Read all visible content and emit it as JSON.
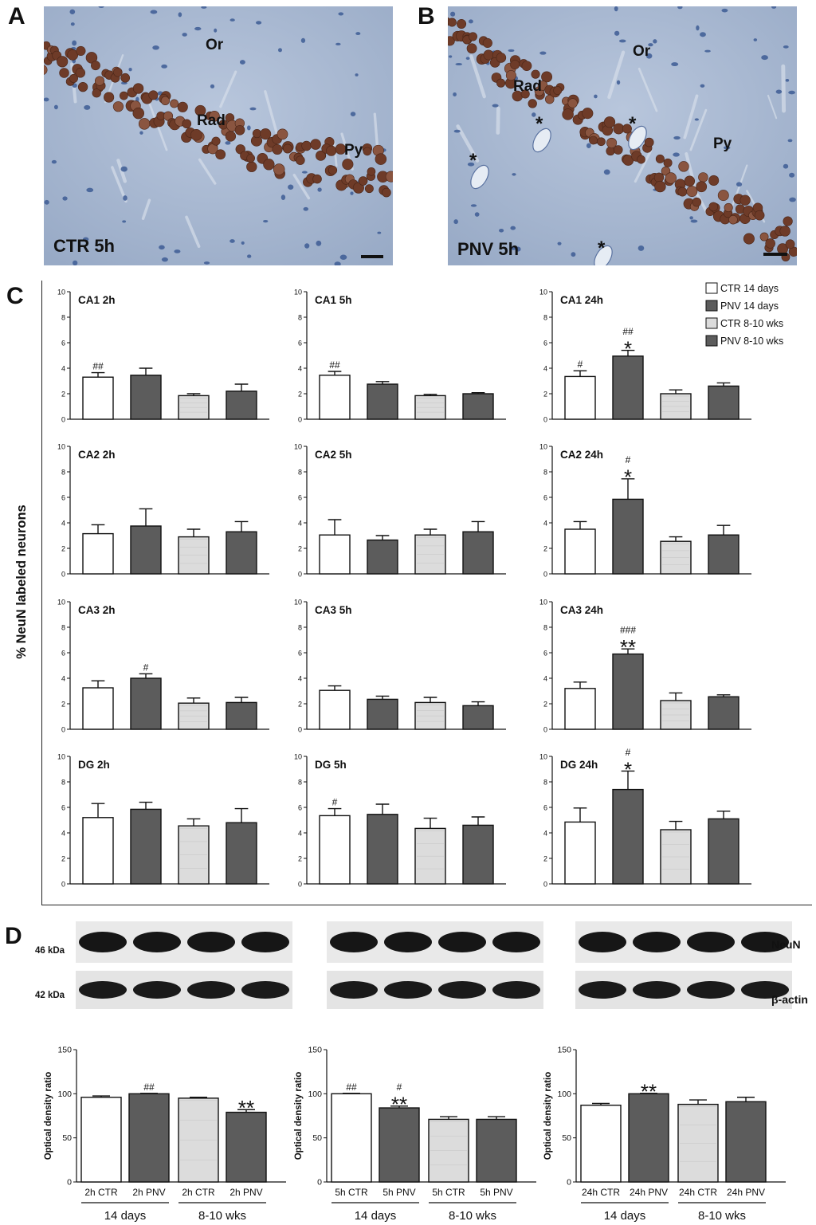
{
  "panels": {
    "A": "A",
    "B": "B",
    "C": "C",
    "D": "D"
  },
  "micrographs": [
    {
      "letter": "A",
      "condition_label": "CTR 5h",
      "regions": {
        "or": "Or",
        "rad": "Rad",
        "py": "Py"
      },
      "asterisks": []
    },
    {
      "letter": "B",
      "condition_label": "PNV 5h",
      "regions": {
        "or": "Or",
        "rad": "Rad",
        "py": "Py"
      },
      "asterisks": [
        "*",
        "*",
        "*",
        "*"
      ]
    }
  ],
  "panel_c": {
    "ylabel": "% NeuN labeled neurons",
    "legend": [
      {
        "label": "CTR 14 days",
        "style": "white"
      },
      {
        "label": "PNV 14 days",
        "style": "dark"
      },
      {
        "label": "CTR 8-10 wks",
        "style": "light"
      },
      {
        "label": "PNV 8-10 wks",
        "style": "dark"
      }
    ]
  },
  "panel_d": {
    "blot_labels": {
      "kda_top": "46 kDa",
      "kda_bottom": "42 kDa",
      "neun": "NeuN",
      "actin": "β-actin"
    },
    "ylabel": "Optical density ratio",
    "group_labels": [
      "14 days",
      "8-10 wks"
    ]
  },
  "colors": {
    "white_bar": "#ffffff",
    "dark_bar": "#5c5c5c",
    "light_bar": "#dcdcdc",
    "axis": "#111111"
  },
  "chart_data": [
    {
      "type": "bar",
      "title": "CA1 2h",
      "ylim": [
        0,
        10
      ],
      "yticks": [
        0,
        2,
        4,
        6,
        8,
        10
      ],
      "values": [
        3.3,
        3.45,
        1.85,
        2.2
      ],
      "errors": [
        0.35,
        0.55,
        0.15,
        0.55
      ],
      "annotations": [
        "##",
        "",
        "",
        ""
      ]
    },
    {
      "type": "bar",
      "title": "CA1 5h",
      "ylim": [
        0,
        10
      ],
      "yticks": [
        0,
        2,
        4,
        6,
        8,
        10
      ],
      "values": [
        3.45,
        2.75,
        1.85,
        2.0
      ],
      "errors": [
        0.3,
        0.2,
        0.1,
        0.08
      ],
      "annotations": [
        "##",
        "",
        "",
        ""
      ]
    },
    {
      "type": "bar",
      "title": "CA1 24h",
      "ylim": [
        0,
        10
      ],
      "yticks": [
        0,
        2,
        4,
        6,
        8,
        10
      ],
      "values": [
        3.35,
        4.95,
        2.0,
        2.6
      ],
      "errors": [
        0.45,
        0.45,
        0.3,
        0.25
      ],
      "annotations": [
        "#",
        "*|##",
        "",
        ""
      ]
    },
    {
      "type": "bar",
      "title": "CA2 2h",
      "ylim": [
        0,
        10
      ],
      "yticks": [
        0,
        2,
        4,
        6,
        8,
        10
      ],
      "values": [
        3.15,
        3.75,
        2.9,
        3.3
      ],
      "errors": [
        0.7,
        1.35,
        0.6,
        0.8
      ],
      "annotations": [
        "",
        "",
        "",
        ""
      ]
    },
    {
      "type": "bar",
      "title": "CA2 5h",
      "ylim": [
        0,
        10
      ],
      "yticks": [
        0,
        2,
        4,
        6,
        8,
        10
      ],
      "values": [
        3.05,
        2.65,
        3.05,
        3.3
      ],
      "errors": [
        1.2,
        0.35,
        0.45,
        0.8
      ],
      "annotations": [
        "",
        "",
        "",
        ""
      ]
    },
    {
      "type": "bar",
      "title": "CA2 24h",
      "ylim": [
        0,
        10
      ],
      "yticks": [
        0,
        2,
        4,
        6,
        8,
        10
      ],
      "values": [
        3.5,
        5.85,
        2.55,
        3.05
      ],
      "errors": [
        0.6,
        1.6,
        0.35,
        0.75
      ],
      "annotations": [
        "",
        "*|#",
        "",
        ""
      ]
    },
    {
      "type": "bar",
      "title": "CA3 2h",
      "ylim": [
        0,
        10
      ],
      "yticks": [
        0,
        2,
        4,
        6,
        8,
        10
      ],
      "values": [
        3.25,
        4.0,
        2.05,
        2.1
      ],
      "errors": [
        0.55,
        0.35,
        0.4,
        0.4
      ],
      "annotations": [
        "",
        "#",
        "",
        ""
      ]
    },
    {
      "type": "bar",
      "title": "CA3 5h",
      "ylim": [
        0,
        10
      ],
      "yticks": [
        0,
        2,
        4,
        6,
        8,
        10
      ],
      "values": [
        3.05,
        2.35,
        2.1,
        1.85
      ],
      "errors": [
        0.35,
        0.25,
        0.4,
        0.3
      ],
      "annotations": [
        "",
        "",
        "",
        ""
      ]
    },
    {
      "type": "bar",
      "title": "CA3 24h",
      "ylim": [
        0,
        10
      ],
      "yticks": [
        0,
        2,
        4,
        6,
        8,
        10
      ],
      "values": [
        3.2,
        5.9,
        2.25,
        2.55
      ],
      "errors": [
        0.5,
        0.4,
        0.6,
        0.15
      ],
      "annotations": [
        "",
        "**|###",
        "",
        ""
      ]
    },
    {
      "type": "bar",
      "title": "DG 2h",
      "ylim": [
        0,
        10
      ],
      "yticks": [
        0,
        2,
        4,
        6,
        8,
        10
      ],
      "values": [
        5.2,
        5.85,
        4.55,
        4.8
      ],
      "errors": [
        1.1,
        0.55,
        0.55,
        1.1
      ],
      "annotations": [
        "",
        "",
        "",
        ""
      ]
    },
    {
      "type": "bar",
      "title": "DG 5h",
      "ylim": [
        0,
        10
      ],
      "yticks": [
        0,
        2,
        4,
        6,
        8,
        10
      ],
      "values": [
        5.35,
        5.45,
        4.35,
        4.6
      ],
      "errors": [
        0.55,
        0.8,
        0.8,
        0.65
      ],
      "annotations": [
        "#",
        "",
        "",
        ""
      ]
    },
    {
      "type": "bar",
      "title": "DG 24h",
      "ylim": [
        0,
        10
      ],
      "yticks": [
        0,
        2,
        4,
        6,
        8,
        10
      ],
      "values": [
        4.85,
        7.4,
        4.25,
        5.1
      ],
      "errors": [
        1.1,
        1.45,
        0.65,
        0.6
      ],
      "annotations": [
        "",
        "*|#",
        "",
        ""
      ]
    },
    {
      "type": "bar",
      "ylabel": "Optical density ratio",
      "ylim": [
        0,
        150
      ],
      "yticks": [
        0,
        50,
        100,
        150
      ],
      "categories": [
        "2h CTR",
        "2h PNV",
        "2h CTR",
        "2h PNV"
      ],
      "values": [
        96,
        100,
        95,
        79
      ],
      "errors": [
        1.5,
        0.5,
        1,
        3
      ],
      "annotations": [
        "",
        "##",
        "",
        "**"
      ]
    },
    {
      "type": "bar",
      "ylabel": "Optical density ratio",
      "ylim": [
        0,
        150
      ],
      "yticks": [
        0,
        50,
        100,
        150
      ],
      "categories": [
        "5h CTR",
        "5h PNV",
        "5h CTR",
        "5h PNV"
      ],
      "values": [
        100,
        84,
        71,
        71
      ],
      "errors": [
        0.5,
        2,
        3,
        3
      ],
      "annotations": [
        "##",
        "**|#",
        "",
        ""
      ]
    },
    {
      "type": "bar",
      "ylabel": "Optical density ratio",
      "ylim": [
        0,
        150
      ],
      "yticks": [
        0,
        50,
        100,
        150
      ],
      "categories": [
        "24h CTR",
        "24h PNV",
        "24h CTR",
        "24h PNV"
      ],
      "values": [
        87,
        100,
        88,
        91
      ],
      "errors": [
        2,
        0.5,
        5,
        5
      ],
      "annotations": [
        "",
        "**",
        "",
        ""
      ]
    }
  ]
}
